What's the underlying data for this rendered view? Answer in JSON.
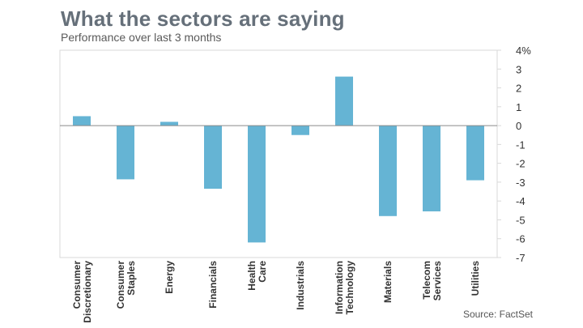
{
  "title": "What the sectors are saying",
  "subtitle": "Performance over last 3 months",
  "source": "Source: FactSet",
  "chart_data": {
    "type": "bar",
    "categories": [
      [
        "Consumer",
        "Discretionary"
      ],
      [
        "Consumer",
        "Staples"
      ],
      [
        "Energy"
      ],
      [
        "Financials"
      ],
      [
        "Health",
        "Care"
      ],
      [
        "Industrials"
      ],
      [
        "Information",
        "Technology"
      ],
      [
        "Materials"
      ],
      [
        "Telecom",
        "Services"
      ],
      [
        "Utilities"
      ]
    ],
    "values": [
      0.5,
      -2.85,
      0.2,
      -3.35,
      -6.2,
      -0.5,
      2.6,
      -4.8,
      -4.55,
      -2.9
    ],
    "ylim": [
      -7,
      4
    ],
    "yticks": [
      "4%",
      "3",
      "2",
      "1",
      "0",
      "-1",
      "-2",
      "-3",
      "-4",
      "-5",
      "-6",
      "-7"
    ],
    "ytick_values": [
      4,
      3,
      2,
      1,
      0,
      -1,
      -2,
      -3,
      -4,
      -5,
      -6,
      -7
    ],
    "y_axis_position": "right",
    "grid": false,
    "bar_color": "#65b4d4",
    "frame_color": "#d9d9d9",
    "baseline_color": "#8a8a8a"
  }
}
